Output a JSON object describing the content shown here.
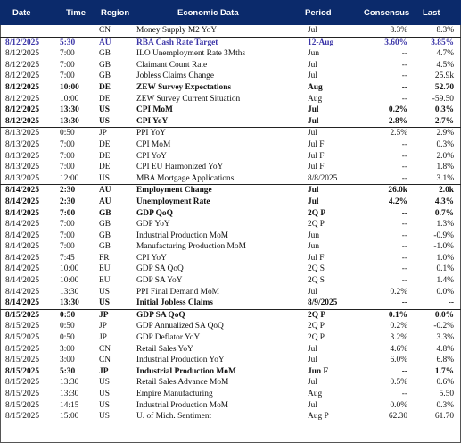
{
  "header": {
    "date": "Date",
    "time": "Time",
    "region": "Region",
    "event": "Economic Data",
    "period": "Period",
    "consensus": "Consensus",
    "last": "Last"
  },
  "rows": [
    {
      "date": "",
      "time": "",
      "region": "CN",
      "event": "Money Supply M2 YoY",
      "period": "Jul",
      "consensus": "8.3%",
      "last": "8.3%",
      "style": "normal",
      "sep": false
    },
    {
      "date": "8/12/2025",
      "time": "5:30",
      "region": "AU",
      "event": "RBA Cash Rate Target",
      "period": "12-Aug",
      "consensus": "3.60%",
      "last": "3.85%",
      "style": "hl",
      "sep": true
    },
    {
      "date": "8/12/2025",
      "time": "7:00",
      "region": "GB",
      "event": "ILO Unemployment Rate 3Mths",
      "period": "Jun",
      "consensus": "--",
      "last": "4.7%",
      "style": "normal",
      "sep": false
    },
    {
      "date": "8/12/2025",
      "time": "7:00",
      "region": "GB",
      "event": "Claimant Count Rate",
      "period": "Jul",
      "consensus": "--",
      "last": "4.5%",
      "style": "normal",
      "sep": false
    },
    {
      "date": "8/12/2025",
      "time": "7:00",
      "region": "GB",
      "event": "Jobless Claims Change",
      "period": "Jul",
      "consensus": "--",
      "last": "25.9k",
      "style": "normal",
      "sep": false
    },
    {
      "date": "8/12/2025",
      "time": "10:00",
      "region": "DE",
      "event": "ZEW Survey Expectations",
      "period": "Aug",
      "consensus": "--",
      "last": "52.70",
      "style": "bold",
      "sep": false
    },
    {
      "date": "8/12/2025",
      "time": "10:00",
      "region": "DE",
      "event": "ZEW Survey Current Situation",
      "period": "Aug",
      "consensus": "--",
      "last": "-59.50",
      "style": "normal",
      "sep": false
    },
    {
      "date": "8/12/2025",
      "time": "13:30",
      "region": "US",
      "event": "CPI MoM",
      "period": "Jul",
      "consensus": "0.2%",
      "last": "0.3%",
      "style": "bold",
      "sep": false
    },
    {
      "date": "8/12/2025",
      "time": "13:30",
      "region": "US",
      "event": "CPI YoY",
      "period": "Jul",
      "consensus": "2.8%",
      "last": "2.7%",
      "style": "bold",
      "sep": false
    },
    {
      "date": "8/13/2025",
      "time": "0:50",
      "region": "JP",
      "event": "PPI YoY",
      "period": "Jul",
      "consensus": "2.5%",
      "last": "2.9%",
      "style": "normal",
      "sep": true
    },
    {
      "date": "8/13/2025",
      "time": "7:00",
      "region": "DE",
      "event": "CPI MoM",
      "period": "Jul F",
      "consensus": "--",
      "last": "0.3%",
      "style": "normal",
      "sep": false
    },
    {
      "date": "8/13/2025",
      "time": "7:00",
      "region": "DE",
      "event": "CPI YoY",
      "period": "Jul F",
      "consensus": "--",
      "last": "2.0%",
      "style": "normal",
      "sep": false
    },
    {
      "date": "8/13/2025",
      "time": "7:00",
      "region": "DE",
      "event": "CPI EU Harmonized YoY",
      "period": "Jul F",
      "consensus": "--",
      "last": "1.8%",
      "style": "normal",
      "sep": false
    },
    {
      "date": "8/13/2025",
      "time": "12:00",
      "region": "US",
      "event": "MBA Mortgage Applications",
      "period": "8/8/2025",
      "consensus": "--",
      "last": "3.1%",
      "style": "normal",
      "sep": false
    },
    {
      "date": "8/14/2025",
      "time": "2:30",
      "region": "AU",
      "event": "Employment Change",
      "period": "Jul",
      "consensus": "26.0k",
      "last": "2.0k",
      "style": "bold",
      "sep": true
    },
    {
      "date": "8/14/2025",
      "time": "2:30",
      "region": "AU",
      "event": "Unemployment Rate",
      "period": "Jul",
      "consensus": "4.2%",
      "last": "4.3%",
      "style": "bold",
      "sep": false
    },
    {
      "date": "8/14/2025",
      "time": "7:00",
      "region": "GB",
      "event": "GDP QoQ",
      "period": "2Q P",
      "consensus": "--",
      "last": "0.7%",
      "style": "bold",
      "sep": false
    },
    {
      "date": "8/14/2025",
      "time": "7:00",
      "region": "GB",
      "event": "GDP YoY",
      "period": "2Q P",
      "consensus": "--",
      "last": "1.3%",
      "style": "normal",
      "sep": false
    },
    {
      "date": "8/14/2025",
      "time": "7:00",
      "region": "GB",
      "event": "Industrial Production MoM",
      "period": "Jun",
      "consensus": "--",
      "last": "-0.9%",
      "style": "normal",
      "sep": false
    },
    {
      "date": "8/14/2025",
      "time": "7:00",
      "region": "GB",
      "event": "Manufacturing Production MoM",
      "period": "Jun",
      "consensus": "--",
      "last": "-1.0%",
      "style": "normal",
      "sep": false
    },
    {
      "date": "8/14/2025",
      "time": "7:45",
      "region": "FR",
      "event": "CPI YoY",
      "period": "Jul F",
      "consensus": "--",
      "last": "1.0%",
      "style": "normal",
      "sep": false
    },
    {
      "date": "8/14/2025",
      "time": "10:00",
      "region": "EU",
      "event": "GDP SA QoQ",
      "period": "2Q S",
      "consensus": "--",
      "last": "0.1%",
      "style": "normal",
      "sep": false
    },
    {
      "date": "8/14/2025",
      "time": "10:00",
      "region": "EU",
      "event": "GDP SA YoY",
      "period": "2Q S",
      "consensus": "--",
      "last": "1.4%",
      "style": "normal",
      "sep": false
    },
    {
      "date": "8/14/2025",
      "time": "13:30",
      "region": "US",
      "event": "PPI Final Demand MoM",
      "period": "Jul",
      "consensus": "0.2%",
      "last": "0.0%",
      "style": "normal",
      "sep": false
    },
    {
      "date": "8/14/2025",
      "time": "13:30",
      "region": "US",
      "event": "Initial Jobless Claims",
      "period": "8/9/2025",
      "consensus": "--",
      "last": "--",
      "style": "bold",
      "sep": false
    },
    {
      "date": "8/15/2025",
      "time": "0:50",
      "region": "JP",
      "event": "GDP SA QoQ",
      "period": "2Q P",
      "consensus": "0.1%",
      "last": "0.0%",
      "style": "bold",
      "sep": true
    },
    {
      "date": "8/15/2025",
      "time": "0:50",
      "region": "JP",
      "event": "GDP Annualized SA QoQ",
      "period": "2Q P",
      "consensus": "0.2%",
      "last": "-0.2%",
      "style": "normal",
      "sep": false
    },
    {
      "date": "8/15/2025",
      "time": "0:50",
      "region": "JP",
      "event": "GDP Deflator YoY",
      "period": "2Q P",
      "consensus": "3.2%",
      "last": "3.3%",
      "style": "normal",
      "sep": false
    },
    {
      "date": "8/15/2025",
      "time": "3:00",
      "region": "CN",
      "event": "Retail Sales YoY",
      "period": "Jul",
      "consensus": "4.6%",
      "last": "4.8%",
      "style": "normal",
      "sep": false
    },
    {
      "date": "8/15/2025",
      "time": "3:00",
      "region": "CN",
      "event": "Industrial Production YoY",
      "period": "Jul",
      "consensus": "6.0%",
      "last": "6.8%",
      "style": "normal",
      "sep": false
    },
    {
      "date": "8/15/2025",
      "time": "5:30",
      "region": "JP",
      "event": "Industrial Production MoM",
      "period": "Jun F",
      "consensus": "--",
      "last": "1.7%",
      "style": "bold",
      "sep": false
    },
    {
      "date": "8/15/2025",
      "time": "13:30",
      "region": "US",
      "event": "Retail Sales Advance MoM",
      "period": "Jul",
      "consensus": "0.5%",
      "last": "0.6%",
      "style": "normal",
      "sep": false
    },
    {
      "date": "8/15/2025",
      "time": "13:30",
      "region": "US",
      "event": "Empire Manufacturing",
      "period": "Aug",
      "consensus": "--",
      "last": "5.50",
      "style": "normal",
      "sep": false
    },
    {
      "date": "8/15/2025",
      "time": "14:15",
      "region": "US",
      "event": "Industrial Production MoM",
      "period": "Jul",
      "consensus": "0.0%",
      "last": "0.3%",
      "style": "normal",
      "sep": false
    },
    {
      "date": "8/15/2025",
      "time": "15:00",
      "region": "US",
      "event": "U. of Mich. Sentiment",
      "period": "Aug P",
      "consensus": "62.30",
      "last": "61.70",
      "style": "normal",
      "sep": false
    }
  ]
}
